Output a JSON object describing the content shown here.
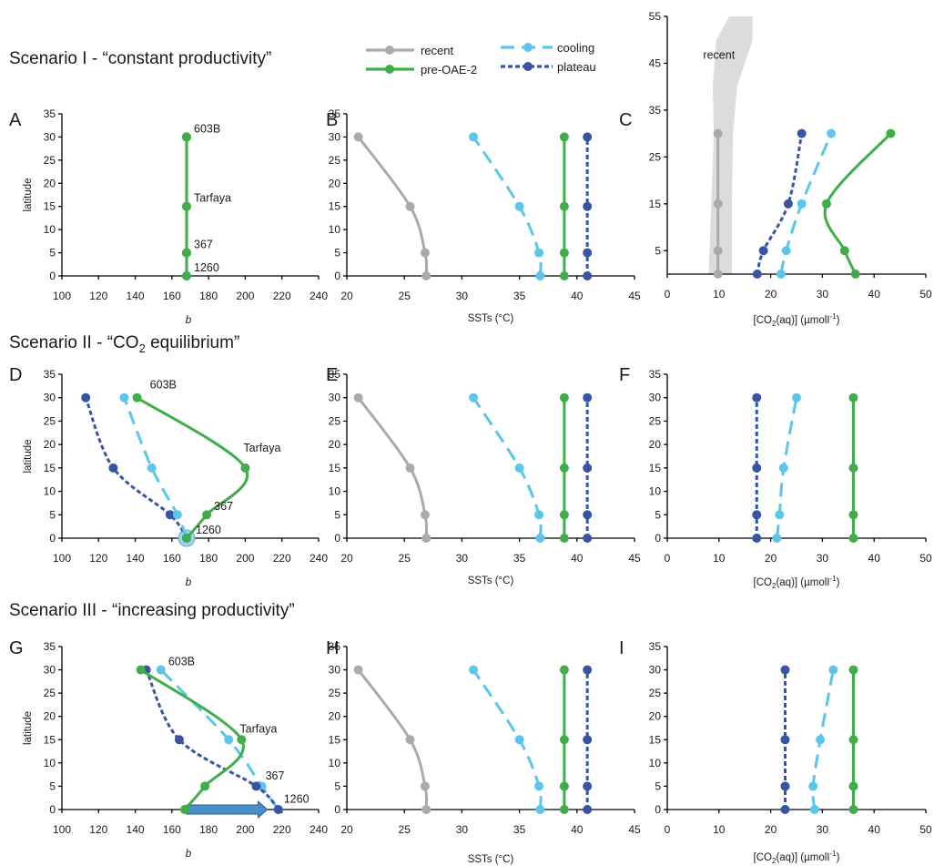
{
  "colors": {
    "recent": "#aaaaaa",
    "pre": "#3fae49",
    "cool": "#5bc5ec",
    "plat": "#3a54a4",
    "band": "#dcdcdc",
    "arrow": "#4a90c8"
  },
  "scenarios": [
    {
      "title_pre": "Scenario ",
      "title_roman": "I",
      "title_rest": " - “constant productivity”"
    },
    {
      "title_pre": "Scenario ",
      "title_roman": "II",
      "title_rest": " - “CO",
      "title_sub": "2",
      "title_post": " equilibrium”"
    },
    {
      "title_pre": "Scenario ",
      "title_roman": "III",
      "title_rest": " - “increasing productivity”"
    }
  ],
  "legend": {
    "recent": "recent",
    "pre": "pre-OAE-2",
    "cool": "cooling",
    "plat": "plateau"
  },
  "axis_labels": {
    "latitude": "latitude",
    "b": "b",
    "sst": "SSTs (°C)",
    "co2_pre": "[CO",
    "co2_sub": "2",
    "co2_post": "(aq)] (µmolI",
    "co2_sup": "-1",
    "co2_end": ")"
  },
  "chart_data": [
    {
      "panel": "A",
      "type": "line",
      "ylabel": "latitude",
      "xlabel": "b",
      "xlim": [
        100,
        240
      ],
      "ylim": [
        0,
        35
      ],
      "xticks": [
        100,
        120,
        140,
        160,
        180,
        200,
        220,
        240
      ],
      "yticks": [
        0,
        5,
        10,
        15,
        20,
        25,
        30,
        35
      ],
      "series": [
        {
          "key": "plat",
          "x": [
            168,
            168,
            168,
            168
          ],
          "y": [
            0,
            5,
            15,
            30
          ]
        },
        {
          "key": "pre",
          "x": [
            168,
            168,
            168,
            168
          ],
          "y": [
            0,
            5,
            15,
            30
          ]
        }
      ],
      "annotations": [
        {
          "text": "603B",
          "x": 172,
          "y": 31
        },
        {
          "text": "Tarfaya",
          "x": 172,
          "y": 16
        },
        {
          "text": "367",
          "x": 172,
          "y": 6
        },
        {
          "text": "1260",
          "x": 172,
          "y": 1
        }
      ]
    },
    {
      "panel": "B",
      "type": "line",
      "xlabel": "SSTs (°C)",
      "xlim": [
        20,
        45
      ],
      "ylim": [
        0,
        35
      ],
      "xticks": [
        20,
        25,
        30,
        35,
        40,
        45
      ],
      "yticks": [
        0,
        5,
        10,
        15,
        20,
        25,
        30,
        35
      ],
      "series": [
        {
          "key": "recent",
          "x": [
            26.9,
            26.8,
            25.5,
            21
          ],
          "y": [
            0,
            5,
            15,
            30
          ]
        },
        {
          "key": "cool",
          "x": [
            36.8,
            36.7,
            35,
            31
          ],
          "y": [
            0,
            5,
            15,
            30
          ]
        },
        {
          "key": "pre",
          "x": [
            38.9,
            38.9,
            38.9,
            38.9
          ],
          "y": [
            0,
            5,
            15,
            30
          ]
        },
        {
          "key": "plat",
          "x": [
            40.9,
            40.9,
            40.9,
            40.9
          ],
          "y": [
            0,
            5,
            15,
            30
          ]
        }
      ]
    },
    {
      "panel": "C",
      "type": "line",
      "xlabel": "[CO2(aq)] (µmolI-1)",
      "xlim": [
        0,
        50
      ],
      "ylim": [
        0,
        55
      ],
      "xticks": [
        0,
        10,
        20,
        30,
        40,
        50
      ],
      "yticks": [
        5,
        15,
        25,
        35,
        45,
        55
      ],
      "band": {
        "x_lo": [
          8,
          8.5,
          9,
          8.8,
          9.5,
          12
        ],
        "x_hi": [
          12.5,
          12.5,
          12.7,
          13.5,
          16.5,
          16.5
        ],
        "y": [
          0,
          15,
          30,
          40,
          50,
          55
        ]
      },
      "band_label": {
        "text": "recent",
        "x": 10,
        "y": 46
      },
      "series": [
        {
          "key": "recent",
          "x": [
            9.8,
            9.8,
            9.8,
            9.8
          ],
          "y": [
            0,
            5,
            15,
            30
          ]
        },
        {
          "key": "plat",
          "x": [
            17.4,
            18.6,
            23.4,
            26
          ],
          "y": [
            0,
            5,
            15,
            30
          ]
        },
        {
          "key": "cool",
          "x": [
            22,
            23,
            26,
            31.7
          ],
          "y": [
            0,
            5,
            15,
            30
          ]
        },
        {
          "key": "pre",
          "x": [
            36.4,
            34.3,
            30.8,
            43.2
          ],
          "y": [
            0,
            5,
            15,
            30
          ]
        }
      ]
    },
    {
      "panel": "D",
      "type": "line",
      "ylabel": "latitude",
      "xlabel": "b",
      "xlim": [
        100,
        240
      ],
      "ylim": [
        0,
        35
      ],
      "xticks": [
        100,
        120,
        140,
        160,
        180,
        200,
        220,
        240
      ],
      "yticks": [
        0,
        5,
        10,
        15,
        20,
        25,
        30,
        35
      ],
      "highlight": {
        "x": 168,
        "y": 0
      },
      "series": [
        {
          "key": "plat",
          "x": [
            168,
            159,
            128,
            113
          ],
          "y": [
            0,
            5,
            15,
            30
          ]
        },
        {
          "key": "cool",
          "x": [
            168,
            163,
            149,
            134
          ],
          "y": [
            0,
            5,
            15,
            30
          ]
        },
        {
          "key": "pre",
          "x": [
            168,
            179,
            200,
            141
          ],
          "y": [
            0,
            5,
            15,
            30
          ]
        }
      ],
      "annotations": [
        {
          "text": "603B",
          "x": 148,
          "y": 32
        },
        {
          "text": "Tarfaya",
          "x": 199,
          "y": 18.5
        },
        {
          "text": "367",
          "x": 183,
          "y": 6
        },
        {
          "text": "1260",
          "x": 173,
          "y": 1
        }
      ]
    },
    {
      "panel": "E",
      "type": "line",
      "xlabel": "SSTs (°C)",
      "xlim": [
        20,
        45
      ],
      "ylim": [
        0,
        35
      ],
      "xticks": [
        20,
        25,
        30,
        35,
        40,
        45
      ],
      "yticks": [
        0,
        5,
        10,
        15,
        20,
        25,
        30,
        35
      ],
      "series": [
        {
          "key": "recent",
          "x": [
            26.9,
            26.8,
            25.5,
            21
          ],
          "y": [
            0,
            5,
            15,
            30
          ]
        },
        {
          "key": "cool",
          "x": [
            36.8,
            36.7,
            35,
            31
          ],
          "y": [
            0,
            5,
            15,
            30
          ]
        },
        {
          "key": "pre",
          "x": [
            38.9,
            38.9,
            38.9,
            38.9
          ],
          "y": [
            0,
            5,
            15,
            30
          ]
        },
        {
          "key": "plat",
          "x": [
            40.9,
            40.9,
            40.9,
            40.9
          ],
          "y": [
            0,
            5,
            15,
            30
          ]
        }
      ]
    },
    {
      "panel": "F",
      "type": "line",
      "xlabel": "[CO2(aq)] (µmolI-1)",
      "xlim": [
        0,
        50
      ],
      "ylim": [
        0,
        35
      ],
      "xticks": [
        0,
        10,
        20,
        30,
        40,
        50
      ],
      "yticks": [
        0,
        5,
        10,
        15,
        20,
        25,
        30,
        35
      ],
      "series": [
        {
          "key": "plat",
          "x": [
            17.3,
            17.3,
            17.3,
            17.3
          ],
          "y": [
            0,
            5,
            15,
            30
          ]
        },
        {
          "key": "cool",
          "x": [
            21.2,
            21.7,
            22.5,
            25
          ],
          "y": [
            0,
            5,
            15,
            30
          ]
        },
        {
          "key": "pre",
          "x": [
            36,
            36,
            36,
            36
          ],
          "y": [
            0,
            5,
            15,
            30
          ]
        }
      ]
    },
    {
      "panel": "G",
      "type": "line",
      "ylabel": "latitude",
      "xlabel": "b",
      "xlim": [
        100,
        240
      ],
      "ylim": [
        0,
        35
      ],
      "xticks": [
        100,
        120,
        140,
        160,
        180,
        200,
        220,
        240
      ],
      "yticks": [
        0,
        5,
        10,
        15,
        20,
        25,
        30,
        35
      ],
      "arrow": {
        "x0": 168,
        "x1": 212,
        "y": 0
      },
      "series": [
        {
          "key": "cool",
          "x": [
            218,
            209,
            191,
            154
          ],
          "y": [
            0,
            5,
            15,
            30
          ]
        },
        {
          "key": "plat",
          "x": [
            218,
            206,
            164,
            146
          ],
          "y": [
            0,
            5,
            15,
            30
          ]
        },
        {
          "key": "pre",
          "x": [
            167,
            178,
            198,
            143
          ],
          "y": [
            0,
            5,
            15,
            30
          ]
        }
      ],
      "annotations": [
        {
          "text": "603B",
          "x": 158,
          "y": 31
        },
        {
          "text": "Tarfaya",
          "x": 197,
          "y": 16.5
        },
        {
          "text": "367",
          "x": 211,
          "y": 6.5
        },
        {
          "text": "1260",
          "x": 221,
          "y": 1.5
        }
      ]
    },
    {
      "panel": "H",
      "type": "line",
      "xlabel": "SSTs (°C)",
      "xlim": [
        20,
        45
      ],
      "ylim": [
        0,
        35
      ],
      "xticks": [
        20,
        25,
        30,
        35,
        40,
        45
      ],
      "yticks": [
        0,
        5,
        10,
        15,
        20,
        25,
        30,
        35
      ],
      "series": [
        {
          "key": "recent",
          "x": [
            26.9,
            26.8,
            25.5,
            21
          ],
          "y": [
            0,
            5,
            15,
            30
          ]
        },
        {
          "key": "cool",
          "x": [
            36.8,
            36.7,
            35,
            31
          ],
          "y": [
            0,
            5,
            15,
            30
          ]
        },
        {
          "key": "pre",
          "x": [
            38.9,
            38.9,
            38.9,
            38.9
          ],
          "y": [
            0,
            5,
            15,
            30
          ]
        },
        {
          "key": "plat",
          "x": [
            40.9,
            40.9,
            40.9,
            40.9
          ],
          "y": [
            0,
            5,
            15,
            30
          ]
        }
      ]
    },
    {
      "panel": "I",
      "type": "line",
      "xlabel": "[CO2(aq)] (µmolI-1)",
      "xlim": [
        0,
        50
      ],
      "ylim": [
        0,
        35
      ],
      "xticks": [
        0,
        10,
        20,
        30,
        40,
        50
      ],
      "yticks": [
        0,
        5,
        10,
        15,
        20,
        25,
        30,
        35
      ],
      "series": [
        {
          "key": "plat",
          "x": [
            22.8,
            22.8,
            22.8,
            22.8
          ],
          "y": [
            0,
            5,
            15,
            30
          ]
        },
        {
          "key": "cool",
          "x": [
            28.5,
            28.2,
            29.6,
            32.1
          ],
          "y": [
            0,
            5,
            15,
            30
          ]
        },
        {
          "key": "pre",
          "x": [
            36,
            36,
            36,
            36
          ],
          "y": [
            0,
            5,
            15,
            30
          ]
        }
      ]
    }
  ]
}
